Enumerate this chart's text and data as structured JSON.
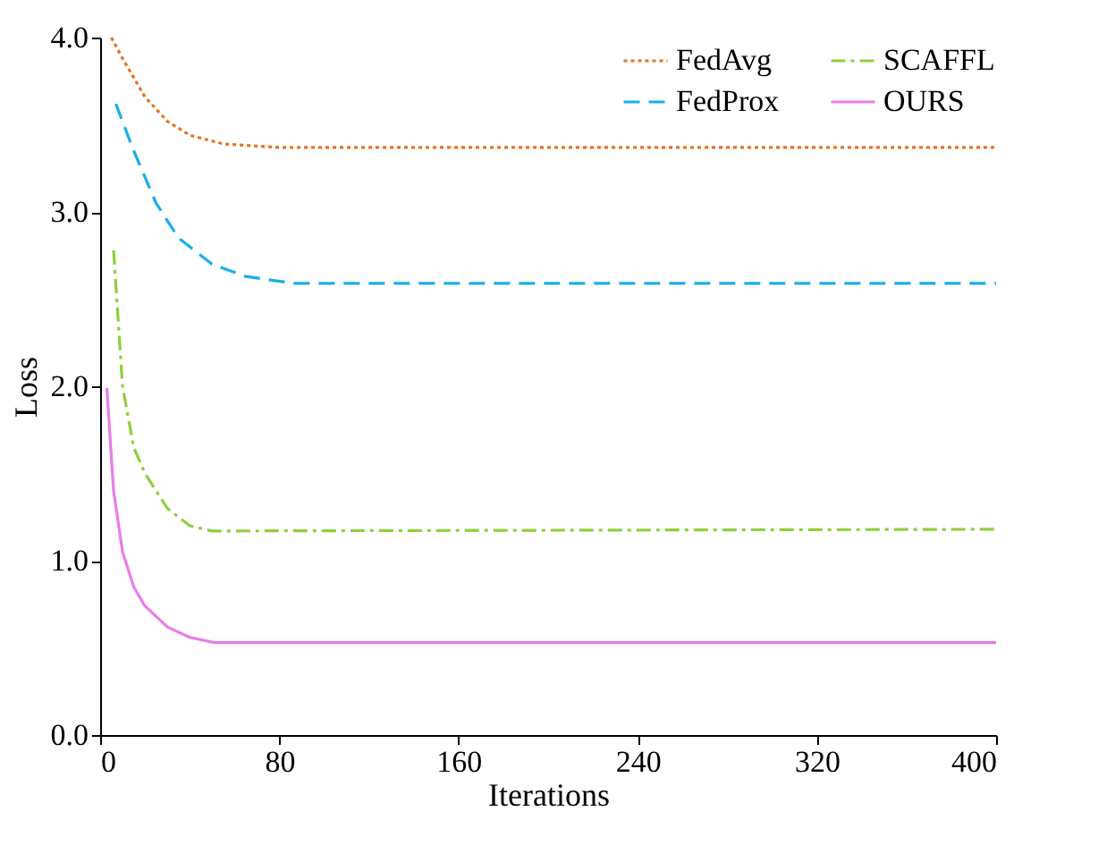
{
  "chart_data": {
    "type": "line",
    "xlabel": "Iterations",
    "ylabel": "Loss",
    "xlim": [
      0,
      400
    ],
    "xticks": [
      0,
      80,
      160,
      240,
      320,
      400
    ],
    "ylim": [
      0,
      4.0
    ],
    "yticks": [
      {
        "value": 0,
        "label": "0.0"
      },
      {
        "value": 1,
        "label": "1.0"
      },
      {
        "value": 2,
        "label": "2.0"
      },
      {
        "value": 3,
        "label": "3.0"
      },
      {
        "value": 4,
        "label": "4.0"
      }
    ],
    "grid": false,
    "legend": "top right",
    "series": [
      {
        "name": "FedAvg",
        "color": "#e8711c",
        "line_style": "dotted",
        "x": [
          5,
          10,
          20,
          30,
          40,
          55,
          80,
          400
        ],
        "values": [
          4.0,
          3.88,
          3.66,
          3.52,
          3.44,
          3.39,
          3.37,
          3.37
        ]
      },
      {
        "name": "FedProx",
        "color": "#1aaee8",
        "line_style": "dashed",
        "x": [
          7,
          15,
          25,
          35,
          50,
          65,
          87,
          400
        ],
        "values": [
          3.62,
          3.35,
          3.05,
          2.85,
          2.7,
          2.63,
          2.59,
          2.59
        ]
      },
      {
        "name": "SCAFFL",
        "color": "#8fcf3c",
        "line_style": "dashdot",
        "x": [
          6,
          10,
          15,
          20,
          30,
          40,
          50,
          400
        ],
        "values": [
          2.78,
          2.0,
          1.65,
          1.5,
          1.3,
          1.2,
          1.17,
          1.18
        ]
      },
      {
        "name": "OURS",
        "color": "#e97ce9",
        "line_style": "solid",
        "x": [
          3,
          6,
          10,
          15,
          20,
          30,
          40,
          51,
          400
        ],
        "values": [
          1.99,
          1.4,
          1.05,
          0.85,
          0.74,
          0.62,
          0.56,
          0.53,
          0.53
        ]
      }
    ]
  }
}
